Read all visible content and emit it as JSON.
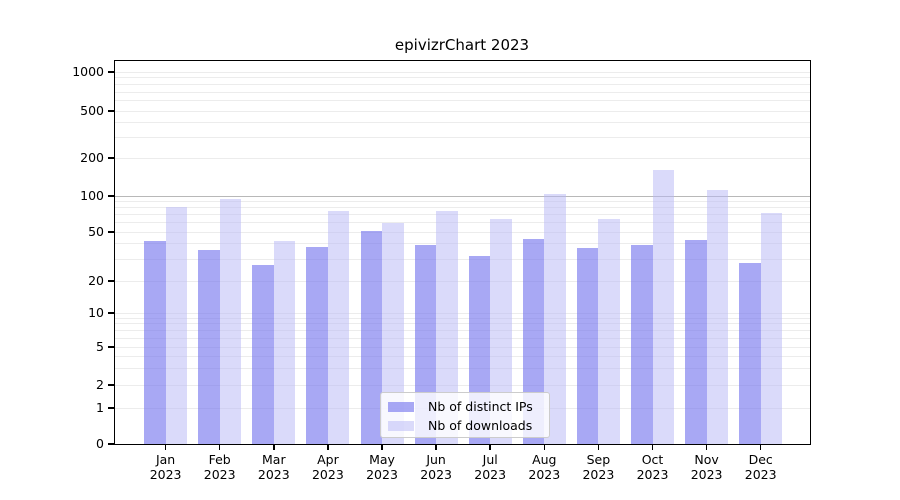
{
  "chart_data": {
    "type": "bar",
    "title": "epivizrChart 2023",
    "categories": [
      "Jan",
      "Feb",
      "Mar",
      "Apr",
      "May",
      "Jun",
      "Jul",
      "Aug",
      "Sep",
      "Oct",
      "Nov",
      "Dec"
    ],
    "year_label": "2023",
    "series": [
      {
        "name": "Nb of distinct IPs",
        "color": "#7a7aee",
        "opacity": 0.65,
        "values": [
          42,
          36,
          27,
          38,
          51,
          39,
          32,
          44,
          37,
          39,
          43,
          28
        ]
      },
      {
        "name": "Nb of downloads",
        "color": "#b5b5f5",
        "opacity": 0.5,
        "values": [
          81,
          94,
          42,
          75,
          60,
          75,
          64,
          103,
          64,
          160,
          112,
          72
        ]
      }
    ],
    "ylabel": "",
    "xlabel": "",
    "yscale": "symlog",
    "ylim": [
      0,
      1000
    ],
    "yticks": [
      0,
      1,
      2,
      5,
      10,
      20,
      50,
      100,
      200,
      500,
      1000
    ],
    "grid_on": true,
    "grid": {
      "minor_values": [
        1,
        2,
        3,
        4,
        5,
        6,
        7,
        8,
        9,
        10,
        20,
        30,
        40,
        50,
        60,
        70,
        80,
        90,
        200,
        300,
        400,
        500,
        600,
        700,
        800,
        900,
        1000
      ],
      "major_values": [
        100
      ]
    },
    "legend_position": "lower center"
  }
}
